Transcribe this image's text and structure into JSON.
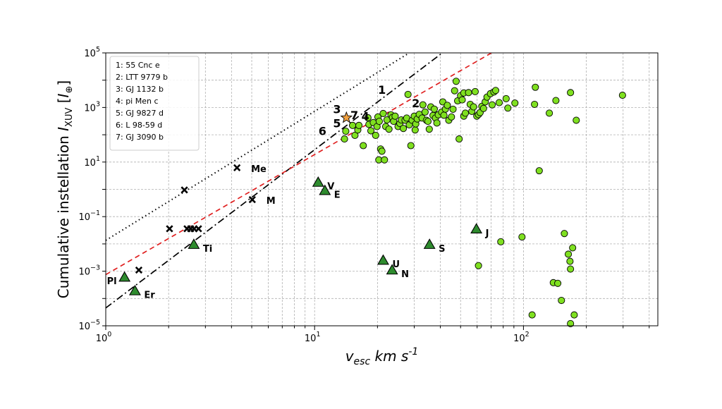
{
  "chart_data": {
    "type": "scatter",
    "xscale": "log",
    "yscale": "log",
    "xlim": [
      1,
      440
    ],
    "ylim": [
      1e-05,
      100000.0
    ],
    "grid": true,
    "xlabel": "v_esc km s^-1",
    "ylabel": "Cumulative instellation I_XUV [I_⊕]",
    "x_ticks": [
      {
        "value": 1,
        "base": "10",
        "exp": "0"
      },
      {
        "value": 10,
        "base": "10",
        "exp": "1"
      },
      {
        "value": 100,
        "base": "10",
        "exp": "2"
      }
    ],
    "y_ticks": [
      {
        "value": 1e-05,
        "base": "10",
        "exp": "−5"
      },
      {
        "value": 0.001,
        "base": "10",
        "exp": "−3"
      },
      {
        "value": 0.1,
        "base": "10",
        "exp": "−1"
      },
      {
        "value": 10,
        "base": "10",
        "exp": "1"
      },
      {
        "value": 1000.0,
        "base": "10",
        "exp": "3"
      },
      {
        "value": 100000.0,
        "base": "10",
        "exp": "5"
      }
    ],
    "legend": {
      "placement": "top-left",
      "entries": [
        "1: 55 Cnc e",
        "2: LTT 9779 b",
        "3: GJ 1132 b",
        "4: pi Men c",
        "5: GJ 9827 d",
        "6: L 98-59 d",
        "7: GJ 3090 b"
      ]
    },
    "lines": [
      {
        "style": "dotted",
        "color": "#000000",
        "points": [
          [
            1,
            0.0135
          ],
          [
            28.4,
            100000.0
          ]
        ]
      },
      {
        "style": "dashdot",
        "color": "#000000",
        "points": [
          [
            1,
            4.5e-05
          ],
          [
            40.9,
            100000.0
          ]
        ]
      },
      {
        "style": "dashed",
        "color": "#e02020",
        "points": [
          [
            1,
            0.00075
          ],
          [
            70.3,
            100000.0
          ]
        ]
      }
    ],
    "exoplanets": [
      [
        13.9,
        70
      ],
      [
        14.1,
        135
      ],
      [
        15.2,
        220
      ],
      [
        15.6,
        95
      ],
      [
        16.1,
        150
      ],
      [
        16.3,
        220
      ],
      [
        17.1,
        40
      ],
      [
        18.0,
        420
      ],
      [
        18.2,
        240
      ],
      [
        18.6,
        140
      ],
      [
        19.1,
        280
      ],
      [
        19.6,
        95
      ],
      [
        19.9,
        200
      ],
      [
        20.1,
        450
      ],
      [
        20.4,
        310
      ],
      [
        20.3,
        12
      ],
      [
        20.7,
        30
      ],
      [
        21.0,
        25
      ],
      [
        21.3,
        600
      ],
      [
        21.6,
        12
      ],
      [
        21.9,
        200
      ],
      [
        22.2,
        350
      ],
      [
        22.7,
        160
      ],
      [
        23.2,
        540
      ],
      [
        23.6,
        430
      ],
      [
        23.9,
        310
      ],
      [
        24.3,
        480
      ],
      [
        25.1,
        200
      ],
      [
        25.6,
        260
      ],
      [
        26.0,
        350
      ],
      [
        26.6,
        170
      ],
      [
        27.1,
        340
      ],
      [
        27.6,
        410
      ],
      [
        28.0,
        3000
      ],
      [
        28.4,
        230
      ],
      [
        28.9,
        40
      ],
      [
        29.3,
        340
      ],
      [
        30.0,
        480
      ],
      [
        30.3,
        150
      ],
      [
        30.5,
        250
      ],
      [
        31.0,
        380
      ],
      [
        31.7,
        560
      ],
      [
        32.7,
        410
      ],
      [
        33.0,
        1250
      ],
      [
        33.8,
        680
      ],
      [
        34.3,
        340
      ],
      [
        34.9,
        310
      ],
      [
        35.4,
        160
      ],
      [
        36.0,
        1050
      ],
      [
        36.9,
        510
      ],
      [
        37.4,
        870
      ],
      [
        37.9,
        410
      ],
      [
        38.5,
        270
      ],
      [
        39.1,
        540
      ],
      [
        40.6,
        680
      ],
      [
        41.1,
        1600
      ],
      [
        41.6,
        520
      ],
      [
        42.3,
        870
      ],
      [
        43.2,
        1200
      ],
      [
        43.9,
        340
      ],
      [
        45.2,
        450
      ],
      [
        46.0,
        860
      ],
      [
        46.8,
        4100
      ],
      [
        47.6,
        9100
      ],
      [
        48.4,
        1750
      ],
      [
        49.2,
        70
      ],
      [
        50.0,
        2700
      ],
      [
        50.9,
        1900
      ],
      [
        51.8,
        3400
      ],
      [
        51.8,
        480
      ],
      [
        52.7,
        620
      ],
      [
        54.6,
        3500
      ],
      [
        55.6,
        1300
      ],
      [
        56.6,
        720
      ],
      [
        57.7,
        1050
      ],
      [
        58.7,
        3800
      ],
      [
        59.8,
        480
      ],
      [
        60.9,
        550
      ],
      [
        62.0,
        650
      ],
      [
        63.2,
        1100
      ],
      [
        64.4,
        920
      ],
      [
        65.6,
        1600
      ],
      [
        66.9,
        2400
      ],
      [
        69.5,
        3200
      ],
      [
        70.8,
        1250
      ],
      [
        72.2,
        3700
      ],
      [
        73.6,
        4200
      ],
      [
        76.5,
        1500
      ],
      [
        82.6,
        2100
      ],
      [
        84.2,
        950
      ],
      [
        91.0,
        1450
      ],
      [
        114,
        5500
      ],
      [
        113,
        1300
      ],
      [
        119,
        4.8
      ],
      [
        133,
        620
      ],
      [
        143,
        1800
      ],
      [
        168,
        3500
      ],
      [
        179,
        340
      ],
      [
        298,
        2800
      ]
    ],
    "exoplanets_low": [
      [
        60.9,
        0.0016
      ],
      [
        77.9,
        0.012
      ],
      [
        98.4,
        0.018
      ],
      [
        110,
        2.5e-05
      ],
      [
        157,
        0.024
      ],
      [
        164,
        0.0042
      ],
      [
        167,
        0.0023
      ],
      [
        172,
        0.0072
      ],
      [
        168,
        0.0012
      ],
      [
        139,
        0.00038
      ],
      [
        146,
        0.00036
      ],
      [
        152,
        8.5e-05
      ],
      [
        175,
        2.5e-05
      ],
      [
        168,
        1.2e-05
      ]
    ],
    "solar_system": [
      {
        "label": "V",
        "x": 10.4,
        "y": 1.8
      },
      {
        "label": "E",
        "x": 11.2,
        "y": 0.9
      },
      {
        "label": "J",
        "x": 59.5,
        "y": 0.035
      },
      {
        "label": "S",
        "x": 35.5,
        "y": 0.0095
      },
      {
        "label": "U",
        "x": 21.3,
        "y": 0.0025
      },
      {
        "label": "N",
        "x": 23.5,
        "y": 0.0011
      },
      {
        "label": "Ti",
        "x": 2.64,
        "y": 0.0095
      },
      {
        "label": "Pl",
        "x": 1.23,
        "y": 0.0006
      },
      {
        "label": "Er",
        "x": 1.38,
        "y": 0.00019
      }
    ],
    "x_markers": [
      {
        "label": "Me",
        "x": 4.25,
        "y": 6.2
      },
      {
        "label": "M",
        "x": 5.03,
        "y": 0.42
      },
      {
        "label": "",
        "x": 2.38,
        "y": 0.95
      },
      {
        "label": "",
        "x": 2.02,
        "y": 0.036
      },
      {
        "label": "",
        "x": 2.45,
        "y": 0.036
      },
      {
        "label": "",
        "x": 2.55,
        "y": 0.036
      },
      {
        "label": "",
        "x": 2.65,
        "y": 0.036
      },
      {
        "label": "",
        "x": 2.78,
        "y": 0.036
      },
      {
        "label": "",
        "x": 1.44,
        "y": 0.0011
      }
    ],
    "highlight_star": {
      "x": 14.2,
      "y": 420,
      "color": "#f0a040"
    },
    "numbered_labels": [
      {
        "label": "1",
        "x": 21.0,
        "y": 4500
      },
      {
        "label": "2",
        "x": 30.5,
        "y": 1450
      },
      {
        "label": "3",
        "x": 12.8,
        "y": 880
      },
      {
        "label": "7",
        "x": 15.5,
        "y": 530
      },
      {
        "label": "4",
        "x": 17.5,
        "y": 490
      },
      {
        "label": "5",
        "x": 12.8,
        "y": 270
      },
      {
        "label": "6",
        "x": 10.9,
        "y": 140
      }
    ],
    "colors": {
      "exoplanet": "#7fe020",
      "solar_system": "#2e8b2e",
      "dashed_line": "#e02020"
    }
  }
}
